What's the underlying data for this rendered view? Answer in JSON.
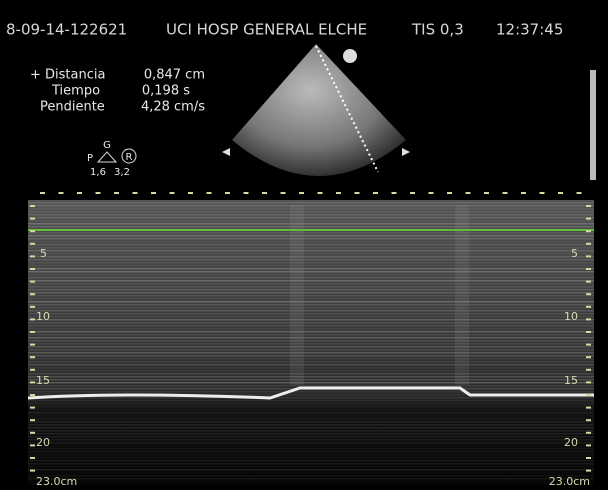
{
  "header": {
    "id": "8-09-14-122621",
    "hospital": "UCI HOSP GENERAL ELCHE",
    "tis": "TIS 0,3",
    "time": "12:37:45"
  },
  "measurements": [
    {
      "label": "+ Distancia",
      "value": "0,847 cm"
    },
    {
      "label": "Tiempo",
      "value": "0,198 s"
    },
    {
      "label": "Pendiente",
      "value": "4,28 cm/s"
    }
  ],
  "probe": {
    "top": "G",
    "left": "P",
    "right": "R",
    "values": [
      "1,6",
      "3,2"
    ]
  },
  "depth_scale": {
    "left": [
      "5",
      "10",
      "15",
      "20"
    ],
    "right": [
      "5",
      "10",
      "15",
      "20"
    ],
    "depth_left": "23.0cm",
    "depth_right": "23.0cm"
  }
}
